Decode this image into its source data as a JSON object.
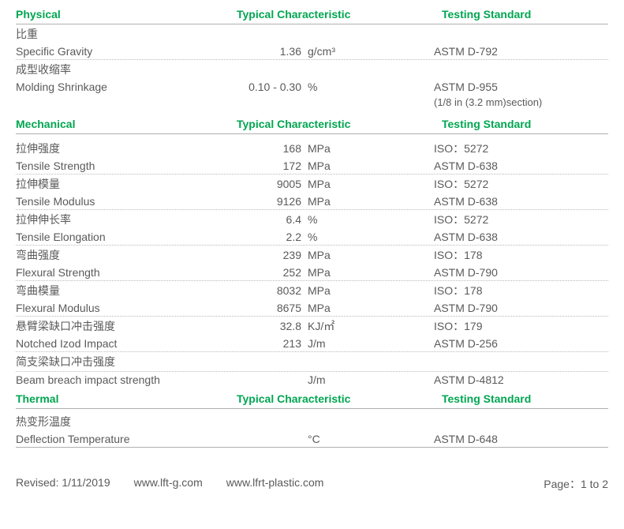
{
  "colors": {
    "accent": "#00a651",
    "text": "#5a5a5a",
    "rule": "#b0b0b0"
  },
  "headers": {
    "property": "Physical",
    "value": "Typical Characteristic",
    "standard": "Testing Standard",
    "mech": "Mechanical",
    "thermal": "Thermal"
  },
  "physical": {
    "specific_gravity": {
      "zh": "比重",
      "en": "Specific Gravity",
      "value": "1.36",
      "unit": "g/cm³",
      "standard": "ASTM D-792"
    },
    "molding_shrinkage": {
      "zh": "成型收缩率",
      "en": "Molding Shrinkage",
      "value": "0.10 - 0.30",
      "unit": "%",
      "standard": "ASTM D-955",
      "standard_sub": "(1/8 in (3.2 mm)section)"
    }
  },
  "mechanical": [
    {
      "label": "拉伸强度",
      "value": "168",
      "unit": "MPa",
      "standard": "ISO：5272"
    },
    {
      "label": "Tensile Strength",
      "value": "172",
      "unit": "MPa",
      "standard": "ASTM D-638"
    },
    {
      "label": "拉伸模量",
      "value": "9005",
      "unit": "MPa",
      "standard": "ISO：5272"
    },
    {
      "label": "Tensile Modulus",
      "value": "9126",
      "unit": "MPa",
      "standard": "ASTM D-638"
    },
    {
      "label": "拉伸伸长率",
      "value": "6.4",
      "unit": "%",
      "standard": "ISO：5272"
    },
    {
      "label": "Tensile Elongation",
      "value": "2.2",
      "unit": "%",
      "standard": "ASTM D-638"
    },
    {
      "label": "弯曲强度",
      "value": "239",
      "unit": "MPa",
      "standard": "ISO：178"
    },
    {
      "label": "Flexural Strength",
      "value": "252",
      "unit": "MPa",
      "standard": "ASTM D-790"
    },
    {
      "label": "弯曲模量",
      "value": "8032",
      "unit": "MPa",
      "standard": "ISO：178"
    },
    {
      "label": "Flexural Modulus",
      "value": "8675",
      "unit": "MPa",
      "standard": "ASTM D-790"
    },
    {
      "label": "悬臂梁缺口冲击强度",
      "value": "32.8",
      "unit": "KJ/㎡",
      "standard": "ISO：179"
    },
    {
      "label": "Notched Izod Impact",
      "value": "213",
      "unit": "J/m",
      "standard": "ASTM D-256"
    },
    {
      "label": "简支梁缺口冲击强度",
      "value": "",
      "unit": "",
      "standard": ""
    },
    {
      "label": "Beam breach impact strength",
      "value": "",
      "unit": "J/m",
      "standard": "ASTM D-4812"
    }
  ],
  "thermal": {
    "deflection": {
      "zh": "热变形温度",
      "en": "Deflection Temperature",
      "value": "",
      "unit": "°C",
      "standard": "ASTM D-648"
    }
  },
  "footer": {
    "revised": "Revised: 1/11/2019",
    "url1": "www.lft-g.com",
    "url2": "www.lfrt-plastic.com",
    "page": "Page：1 to 2"
  }
}
